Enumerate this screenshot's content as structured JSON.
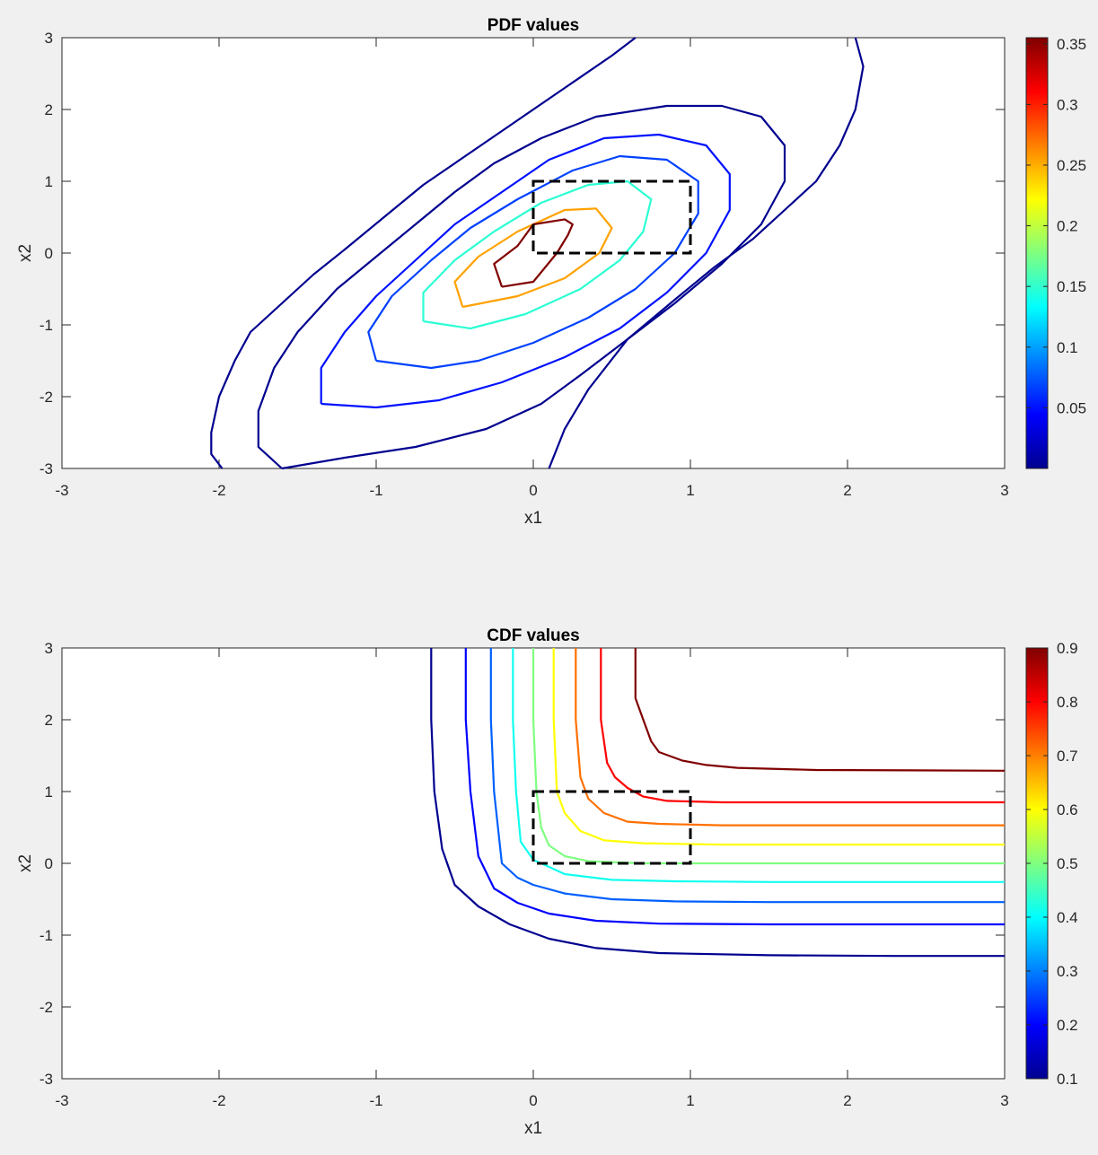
{
  "chart_data": [
    {
      "type": "contour",
      "title": "PDF values",
      "xlabel": "x1",
      "ylabel": "x2",
      "xlim": [
        -3,
        3
      ],
      "ylim": [
        -3,
        3
      ],
      "xticks": [
        "-3",
        "-2",
        "-1",
        "0",
        "1",
        "2",
        "3"
      ],
      "yticks": [
        "-3",
        "-2",
        "-1",
        "0",
        "1",
        "2",
        "3"
      ],
      "colorbar": {
        "range": [
          0.0,
          0.355
        ],
        "ticks": [
          "0.05",
          "0.1",
          "0.15",
          "0.2",
          "0.25",
          "0.3",
          "0.35"
        ],
        "tick_values": [
          0.05,
          0.1,
          0.15,
          0.2,
          0.25,
          0.3,
          0.35
        ]
      },
      "rectangle": {
        "x": [
          0,
          1
        ],
        "y": [
          0,
          1
        ],
        "style": "dashed",
        "color": "#000000"
      },
      "contours": [
        {
          "level": 0.005,
          "color": "#00008f",
          "points": [
            [
              -1.98,
              -3
            ],
            [
              -2.05,
              -2.8
            ],
            [
              -2.05,
              -2.5
            ],
            [
              -2.0,
              -2.0
            ],
            [
              -1.9,
              -1.5
            ],
            [
              -1.8,
              -1.1
            ],
            [
              -1.6,
              -0.7
            ],
            [
              -1.4,
              -0.3
            ],
            [
              -1.2,
              0.05
            ],
            [
              -0.95,
              0.5
            ],
            [
              -0.7,
              0.95
            ],
            [
              -0.4,
              1.4
            ],
            [
              -0.1,
              1.85
            ],
            [
              0.2,
              2.3
            ],
            [
              0.5,
              2.75
            ],
            [
              0.65,
              3.0
            ]
          ]
        },
        {
          "level": 0.005,
          "color": "#00008f",
          "points": [
            [
              2.05,
              3.0
            ],
            [
              2.1,
              2.6
            ],
            [
              2.05,
              2.0
            ],
            [
              1.95,
              1.5
            ],
            [
              1.8,
              1.0
            ],
            [
              1.6,
              0.6
            ],
            [
              1.4,
              0.2
            ],
            [
              1.15,
              -0.2
            ],
            [
              0.9,
              -0.65
            ],
            [
              0.6,
              -1.2
            ],
            [
              0.35,
              -1.9
            ],
            [
              0.2,
              -2.45
            ],
            [
              0.1,
              -3.0
            ]
          ]
        },
        {
          "level": 0.02,
          "color": "#00008f",
          "points": [
            [
              -1.6,
              -3.0
            ],
            [
              -1.75,
              -2.7
            ],
            [
              -1.75,
              -2.2
            ],
            [
              -1.65,
              -1.6
            ],
            [
              -1.5,
              -1.1
            ],
            [
              -1.25,
              -0.5
            ],
            [
              -1.0,
              -0.05
            ],
            [
              -0.75,
              0.4
            ],
            [
              -0.5,
              0.85
            ],
            [
              -0.25,
              1.25
            ],
            [
              0.05,
              1.6
            ],
            [
              0.4,
              1.9
            ],
            [
              0.85,
              2.05
            ],
            [
              1.2,
              2.05
            ],
            [
              1.45,
              1.9
            ],
            [
              1.6,
              1.5
            ],
            [
              1.6,
              1.0
            ],
            [
              1.45,
              0.4
            ],
            [
              1.2,
              -0.15
            ],
            [
              0.9,
              -0.7
            ],
            [
              0.6,
              -1.2
            ],
            [
              0.3,
              -1.7
            ],
            [
              0.05,
              -2.1
            ],
            [
              -0.3,
              -2.45
            ],
            [
              -0.75,
              -2.7
            ],
            [
              -1.2,
              -2.85
            ],
            [
              -1.6,
              -3.0
            ]
          ]
        },
        {
          "level": 0.045,
          "color": "#0011ff",
          "points": [
            [
              -1.35,
              -2.1
            ],
            [
              -1.35,
              -1.6
            ],
            [
              -1.2,
              -1.1
            ],
            [
              -1.0,
              -0.6
            ],
            [
              -0.75,
              -0.1
            ],
            [
              -0.5,
              0.4
            ],
            [
              -0.2,
              0.85
            ],
            [
              0.1,
              1.3
            ],
            [
              0.45,
              1.6
            ],
            [
              0.8,
              1.65
            ],
            [
              1.1,
              1.5
            ],
            [
              1.25,
              1.1
            ],
            [
              1.25,
              0.6
            ],
            [
              1.1,
              0.0
            ],
            [
              0.85,
              -0.55
            ],
            [
              0.55,
              -1.05
            ],
            [
              0.2,
              -1.45
            ],
            [
              -0.2,
              -1.8
            ],
            [
              -0.6,
              -2.05
            ],
            [
              -1.0,
              -2.15
            ],
            [
              -1.35,
              -2.1
            ]
          ]
        },
        {
          "level": 0.09,
          "color": "#0041ff",
          "points": [
            [
              -1.0,
              -1.5
            ],
            [
              -1.05,
              -1.1
            ],
            [
              -0.9,
              -0.6
            ],
            [
              -0.65,
              -0.1
            ],
            [
              -0.4,
              0.35
            ],
            [
              -0.1,
              0.75
            ],
            [
              0.25,
              1.15
            ],
            [
              0.55,
              1.35
            ],
            [
              0.85,
              1.3
            ],
            [
              1.05,
              1.0
            ],
            [
              1.05,
              0.55
            ],
            [
              0.9,
              0.0
            ],
            [
              0.65,
              -0.5
            ],
            [
              0.35,
              -0.9
            ],
            [
              0.0,
              -1.25
            ],
            [
              -0.35,
              -1.5
            ],
            [
              -0.65,
              -1.6
            ],
            [
              -1.0,
              -1.5
            ]
          ]
        },
        {
          "level": 0.16,
          "color": "#2cffd3",
          "points": [
            [
              -0.7,
              -0.95
            ],
            [
              -0.7,
              -0.55
            ],
            [
              -0.5,
              -0.1
            ],
            [
              -0.25,
              0.3
            ],
            [
              0.05,
              0.7
            ],
            [
              0.35,
              0.95
            ],
            [
              0.6,
              1.0
            ],
            [
              0.75,
              0.75
            ],
            [
              0.7,
              0.3
            ],
            [
              0.55,
              -0.1
            ],
            [
              0.3,
              -0.5
            ],
            [
              -0.05,
              -0.85
            ],
            [
              -0.4,
              -1.05
            ],
            [
              -0.7,
              -0.95
            ]
          ]
        },
        {
          "level": 0.24,
          "color": "#ffa200",
          "points": [
            [
              -0.45,
              -0.75
            ],
            [
              -0.5,
              -0.4
            ],
            [
              -0.35,
              -0.05
            ],
            [
              -0.1,
              0.3
            ],
            [
              0.2,
              0.6
            ],
            [
              0.4,
              0.62
            ],
            [
              0.5,
              0.35
            ],
            [
              0.42,
              0.0
            ],
            [
              0.2,
              -0.35
            ],
            [
              -0.1,
              -0.6
            ],
            [
              -0.45,
              -0.75
            ]
          ]
        },
        {
          "level": 0.33,
          "color": "#800000",
          "points": [
            [
              -0.2,
              -0.47
            ],
            [
              -0.25,
              -0.15
            ],
            [
              -0.1,
              0.1
            ],
            [
              0.0,
              0.4
            ],
            [
              0.2,
              0.47
            ],
            [
              0.25,
              0.4
            ],
            [
              0.22,
              0.25
            ],
            [
              0.15,
              0.0
            ],
            [
              0.0,
              -0.4
            ],
            [
              -0.2,
              -0.47
            ]
          ]
        }
      ]
    },
    {
      "type": "contour",
      "title": "CDF values",
      "xlabel": "x1",
      "ylabel": "x2",
      "xlim": [
        -3,
        3
      ],
      "ylim": [
        -3,
        3
      ],
      "xticks": [
        "-3",
        "-2",
        "-1",
        "0",
        "1",
        "2",
        "3"
      ],
      "yticks": [
        "-3",
        "-2",
        "-1",
        "0",
        "1",
        "2",
        "3"
      ],
      "colorbar": {
        "range": [
          0.1,
          0.9
        ],
        "ticks": [
          "0.1",
          "0.2",
          "0.3",
          "0.4",
          "0.5",
          "0.6",
          "0.7",
          "0.8",
          "0.9"
        ],
        "tick_values": [
          0.1,
          0.2,
          0.3,
          0.4,
          0.5,
          0.6,
          0.7,
          0.8,
          0.9
        ]
      },
      "rectangle": {
        "x": [
          0,
          1
        ],
        "y": [
          0,
          1
        ],
        "style": "dashed",
        "color": "#000000"
      },
      "contours": [
        {
          "level": 0.1,
          "color": "#00008f",
          "points": [
            [
              -0.65,
              3
            ],
            [
              -0.65,
              2.0
            ],
            [
              -0.63,
              1.0
            ],
            [
              -0.58,
              0.2
            ],
            [
              -0.5,
              -0.3
            ],
            [
              -0.35,
              -0.6
            ],
            [
              -0.15,
              -0.85
            ],
            [
              0.1,
              -1.05
            ],
            [
              0.4,
              -1.18
            ],
            [
              0.8,
              -1.25
            ],
            [
              1.5,
              -1.28
            ],
            [
              2.3,
              -1.29
            ],
            [
              3,
              -1.29
            ]
          ]
        },
        {
          "level": 0.2,
          "color": "#0000ff",
          "points": [
            [
              -0.43,
              3
            ],
            [
              -0.43,
              2.0
            ],
            [
              -0.4,
              1.0
            ],
            [
              -0.35,
              0.1
            ],
            [
              -0.25,
              -0.35
            ],
            [
              -0.1,
              -0.55
            ],
            [
              0.1,
              -0.7
            ],
            [
              0.4,
              -0.8
            ],
            [
              0.8,
              -0.84
            ],
            [
              1.5,
              -0.85
            ],
            [
              3,
              -0.85
            ]
          ]
        },
        {
          "level": 0.3,
          "color": "#0060ff",
          "points": [
            [
              -0.27,
              3
            ],
            [
              -0.27,
              2.0
            ],
            [
              -0.25,
              1.0
            ],
            [
              -0.2,
              0.0
            ],
            [
              -0.1,
              -0.2
            ],
            [
              0.0,
              -0.3
            ],
            [
              0.2,
              -0.42
            ],
            [
              0.5,
              -0.5
            ],
            [
              0.9,
              -0.53
            ],
            [
              1.5,
              -0.54
            ],
            [
              3,
              -0.54
            ]
          ]
        },
        {
          "level": 0.4,
          "color": "#10ffef",
          "points": [
            [
              -0.13,
              3
            ],
            [
              -0.13,
              2.0
            ],
            [
              -0.11,
              1.0
            ],
            [
              -0.08,
              0.3
            ],
            [
              0.0,
              0.05
            ],
            [
              0.1,
              -0.05
            ],
            [
              0.2,
              -0.15
            ],
            [
              0.5,
              -0.23
            ],
            [
              0.9,
              -0.25
            ],
            [
              1.5,
              -0.26
            ],
            [
              3,
              -0.26
            ]
          ]
        },
        {
          "level": 0.5,
          "color": "#80ff80",
          "points": [
            [
              0.0,
              3
            ],
            [
              0.0,
              2.0
            ],
            [
              0.02,
              1.0
            ],
            [
              0.05,
              0.5
            ],
            [
              0.1,
              0.25
            ],
            [
              0.2,
              0.1
            ],
            [
              0.35,
              0.03
            ],
            [
              0.7,
              0.0
            ],
            [
              1.2,
              0.0
            ],
            [
              3,
              0.0
            ]
          ]
        },
        {
          "level": 0.6,
          "color": "#ffff00",
          "points": [
            [
              0.13,
              3
            ],
            [
              0.13,
              2.0
            ],
            [
              0.15,
              1.0
            ],
            [
              0.2,
              0.7
            ],
            [
              0.3,
              0.45
            ],
            [
              0.45,
              0.32
            ],
            [
              0.7,
              0.28
            ],
            [
              1.2,
              0.26
            ],
            [
              3,
              0.26
            ]
          ]
        },
        {
          "level": 0.7,
          "color": "#ff7000",
          "points": [
            [
              0.27,
              3
            ],
            [
              0.27,
              2.0
            ],
            [
              0.3,
              1.2
            ],
            [
              0.35,
              0.9
            ],
            [
              0.45,
              0.7
            ],
            [
              0.6,
              0.58
            ],
            [
              0.8,
              0.55
            ],
            [
              1.2,
              0.53
            ],
            [
              3,
              0.53
            ]
          ]
        },
        {
          "level": 0.8,
          "color": "#ff0000",
          "points": [
            [
              0.43,
              3
            ],
            [
              0.43,
              2.0
            ],
            [
              0.47,
              1.4
            ],
            [
              0.52,
              1.2
            ],
            [
              0.6,
              1.05
            ],
            [
              0.7,
              0.93
            ],
            [
              0.85,
              0.87
            ],
            [
              1.2,
              0.85
            ],
            [
              3,
              0.85
            ]
          ]
        },
        {
          "level": 0.9,
          "color": "#800000",
          "points": [
            [
              0.65,
              3
            ],
            [
              0.65,
              2.3
            ],
            [
              0.7,
              2.0
            ],
            [
              0.75,
              1.7
            ],
            [
              0.8,
              1.55
            ],
            [
              0.95,
              1.43
            ],
            [
              1.1,
              1.37
            ],
            [
              1.3,
              1.33
            ],
            [
              1.8,
              1.3
            ],
            [
              3,
              1.29
            ]
          ]
        }
      ]
    }
  ]
}
